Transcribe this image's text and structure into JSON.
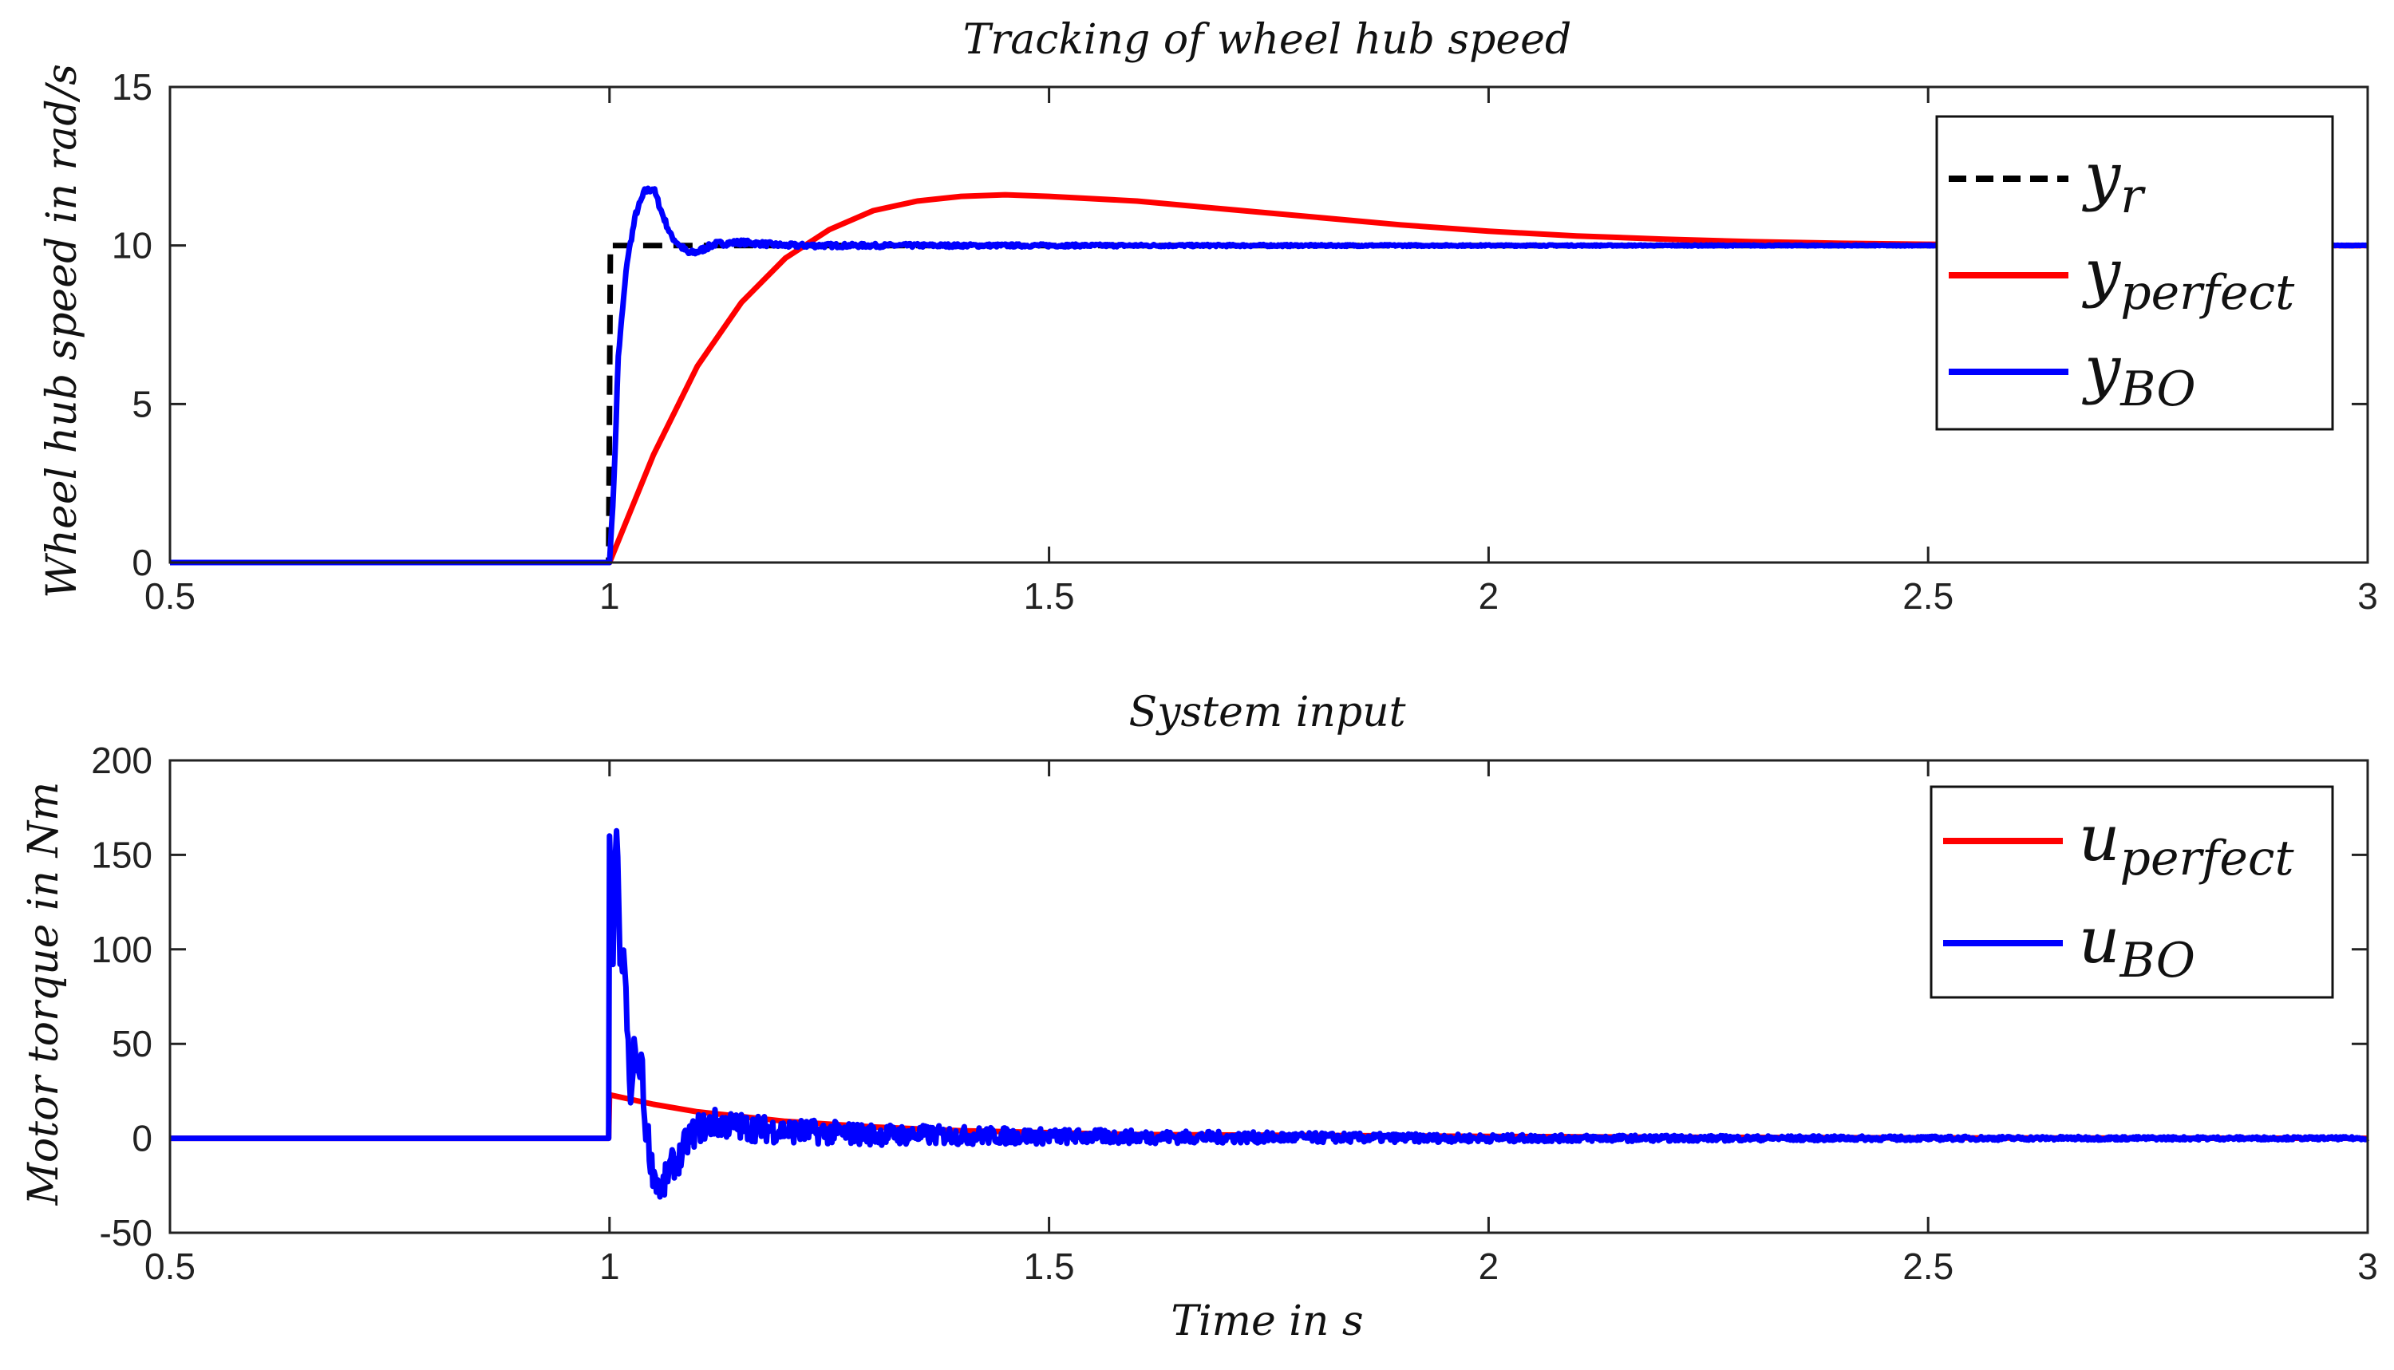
{
  "chart_data": [
    {
      "type": "line",
      "title": "Tracking of wheel hub speed",
      "xlabel": "",
      "ylabel": "Wheel hub speed in rad/s",
      "xlim": [
        0.5,
        3
      ],
      "ylim": [
        0,
        15
      ],
      "xticks": [
        "0.5",
        "1",
        "1.5",
        "2",
        "2.5",
        "3"
      ],
      "yticks": [
        "0",
        "5",
        "10",
        "15"
      ],
      "legend_position": "top-right",
      "series": [
        {
          "name": "y_r",
          "legend_main": "y",
          "legend_sub": "r",
          "color": "#000000",
          "style": "dashed",
          "x": [
            0.5,
            0.999,
            1.0,
            1.001,
            3.0
          ],
          "y": [
            0,
            0,
            5,
            10,
            10
          ]
        },
        {
          "name": "y_perfect",
          "legend_main": "y",
          "legend_sub": "perfect",
          "color": "#ff0000",
          "style": "solid",
          "x": [
            0.5,
            1.0,
            1.05,
            1.1,
            1.15,
            1.2,
            1.25,
            1.3,
            1.35,
            1.4,
            1.45,
            1.5,
            1.6,
            1.7,
            1.8,
            1.9,
            2.0,
            2.1,
            2.2,
            2.3,
            2.4,
            2.5,
            2.6,
            2.7,
            2.8,
            2.9,
            3.0
          ],
          "y": [
            0,
            0,
            3.4,
            6.2,
            8.2,
            9.6,
            10.5,
            11.1,
            11.4,
            11.55,
            11.6,
            11.55,
            11.4,
            11.15,
            10.9,
            10.65,
            10.45,
            10.3,
            10.2,
            10.12,
            10.07,
            10.04,
            10.02,
            10.01,
            10.0,
            10.0,
            10.0
          ],
          "noise": 0
        },
        {
          "name": "y_BO",
          "legend_main": "y",
          "legend_sub": "BO",
          "color": "#0000ff",
          "style": "solid",
          "x": [
            0.5,
            1.0,
            1.005,
            1.01,
            1.02,
            1.03,
            1.04,
            1.05,
            1.06,
            1.07,
            1.08,
            1.09,
            1.1,
            1.12,
            1.15,
            1.2,
            1.3,
            3.0
          ],
          "y": [
            0,
            0,
            2.5,
            6.5,
            9.5,
            11.0,
            11.7,
            11.8,
            11.0,
            10.3,
            10.0,
            9.75,
            9.8,
            10.05,
            10.1,
            10.0,
            10.0,
            10.0
          ],
          "noise": 0.1
        }
      ]
    },
    {
      "type": "line",
      "title": "System input",
      "xlabel": "Time in s",
      "ylabel": "Motor torque in Nm",
      "xlim": [
        0.5,
        3
      ],
      "ylim": [
        -50,
        200
      ],
      "xticks": [
        "0.5",
        "1",
        "1.5",
        "2",
        "2.5",
        "3"
      ],
      "yticks": [
        "-50",
        "0",
        "50",
        "100",
        "150",
        "200"
      ],
      "legend_position": "top-right",
      "series": [
        {
          "name": "u_perfect",
          "legend_main": "u",
          "legend_sub": "perfect",
          "color": "#ff0000",
          "style": "solid",
          "x": [
            0.5,
            0.999,
            1.0,
            1.05,
            1.1,
            1.2,
            1.3,
            1.4,
            1.5,
            1.6,
            1.8,
            2.0,
            2.2,
            2.5,
            3.0
          ],
          "y": [
            0,
            0,
            23,
            18,
            14,
            9,
            6,
            4,
            3,
            2,
            1.5,
            1,
            0.6,
            0.2,
            0
          ],
          "noise": 0
        },
        {
          "name": "u_BO",
          "legend_main": "u",
          "legend_sub": "BO",
          "color": "#0000ff",
          "style": "solid",
          "x": [
            0.5,
            0.999,
            1.0,
            1.004,
            1.008,
            1.012,
            1.016,
            1.02,
            1.024,
            1.028,
            1.032,
            1.036,
            1.04,
            1.044,
            1.048,
            1.052,
            1.056,
            1.06,
            1.065,
            1.07,
            1.08,
            1.09,
            1.1,
            1.12,
            1.15,
            1.2,
            1.3,
            1.4,
            1.5,
            1.7,
            2.0,
            2.3,
            2.6,
            3.0
          ],
          "y": [
            0,
            0,
            160,
            100,
            168,
            85,
            100,
            60,
            15,
            50,
            30,
            45,
            10,
            0,
            -15,
            -20,
            -25,
            -28,
            -20,
            -15,
            -10,
            0,
            5,
            8,
            6,
            4,
            2,
            1.5,
            1,
            0.5,
            0,
            0,
            0,
            0
          ],
          "noise": 9
        }
      ]
    }
  ]
}
